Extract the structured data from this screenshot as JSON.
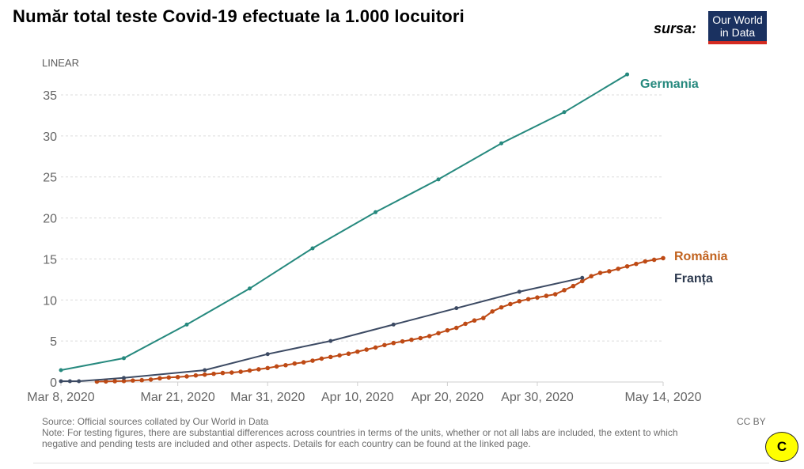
{
  "header": {
    "title": "Număr total teste Covid-19 efectuate la 1.000 locuitori",
    "source_label": "sursa:",
    "logo_line1": "Our World",
    "logo_line2": "in Data"
  },
  "footer": {
    "source": "Source: Official sources collated by Our World in Data",
    "note_line1": "Note: For testing figures, there are substantial differences across countries in terms of the units, whether or not all labs are included, the extent to which",
    "note_line2": "negative and pending tests are included and other aspects. Details for each country can be found at the linked page.",
    "license": "CC BY",
    "badge": "C"
  },
  "chart_data": {
    "type": "line",
    "title": "Număr total teste Covid-19 efectuate la 1.000 locuitori",
    "scale_label": "LINEAR",
    "xlabel": "",
    "ylabel": "",
    "x_start": "2020-03-08",
    "x_range_days": [
      0,
      67
    ],
    "ylim": [
      0,
      37.5
    ],
    "yticks": [
      0,
      5,
      10,
      15,
      20,
      25,
      30,
      35
    ],
    "xticks": [
      {
        "day": 0,
        "label": "Mar 8, 2020"
      },
      {
        "day": 13,
        "label": "Mar 21, 2020"
      },
      {
        "day": 23,
        "label": "Mar 31, 2020"
      },
      {
        "day": 33,
        "label": "Apr 10, 2020"
      },
      {
        "day": 43,
        "label": "Apr 20, 2020"
      },
      {
        "day": 53,
        "label": "Apr 30, 2020"
      },
      {
        "day": 67,
        "label": "May 14, 2020"
      }
    ],
    "grid": true,
    "legend": "inline-right",
    "series": [
      {
        "name": "Germania",
        "color": "#26897e",
        "days": [
          0,
          7,
          14,
          21,
          28,
          35,
          42,
          49,
          56,
          63
        ],
        "values": [
          1.45,
          2.9,
          7.0,
          11.4,
          16.3,
          20.7,
          24.7,
          29.1,
          32.9,
          37.5
        ]
      },
      {
        "name": "România",
        "color": "#be4a15",
        "label_color": "#c1621e",
        "days": [
          4,
          5,
          6,
          7,
          8,
          9,
          10,
          11,
          12,
          13,
          14,
          15,
          16,
          17,
          18,
          19,
          20,
          21,
          22,
          23,
          24,
          25,
          26,
          27,
          28,
          29,
          30,
          31,
          32,
          33,
          34,
          35,
          36,
          37,
          38,
          39,
          40,
          41,
          42,
          43,
          44,
          45,
          46,
          47,
          48,
          49,
          50,
          51,
          52,
          53,
          54,
          55,
          56,
          57,
          58,
          59,
          60,
          61,
          62,
          63,
          64,
          65,
          66,
          67
        ],
        "values": [
          0.05,
          0.07,
          0.1,
          0.12,
          0.18,
          0.22,
          0.3,
          0.45,
          0.55,
          0.6,
          0.68,
          0.8,
          0.9,
          1.0,
          1.1,
          1.15,
          1.25,
          1.4,
          1.55,
          1.7,
          1.9,
          2.05,
          2.25,
          2.4,
          2.6,
          2.85,
          3.05,
          3.25,
          3.45,
          3.7,
          3.95,
          4.2,
          4.5,
          4.75,
          4.95,
          5.15,
          5.35,
          5.6,
          5.95,
          6.3,
          6.6,
          7.1,
          7.5,
          7.8,
          8.6,
          9.1,
          9.5,
          9.85,
          10.1,
          10.3,
          10.5,
          10.7,
          11.2,
          11.7,
          12.3,
          12.9,
          13.3,
          13.5,
          13.8,
          14.1,
          14.4,
          14.7,
          14.9,
          15.1
        ]
      },
      {
        "name": "Franța",
        "color": "#3c4a63",
        "label_color": "#2d3a4f",
        "days": [
          0,
          1,
          2,
          7,
          16,
          23,
          30,
          37,
          44,
          51,
          58
        ],
        "values": [
          0.1,
          0.1,
          0.1,
          0.5,
          1.45,
          3.4,
          5.0,
          7.0,
          9.0,
          11.0,
          12.7
        ]
      }
    ]
  }
}
